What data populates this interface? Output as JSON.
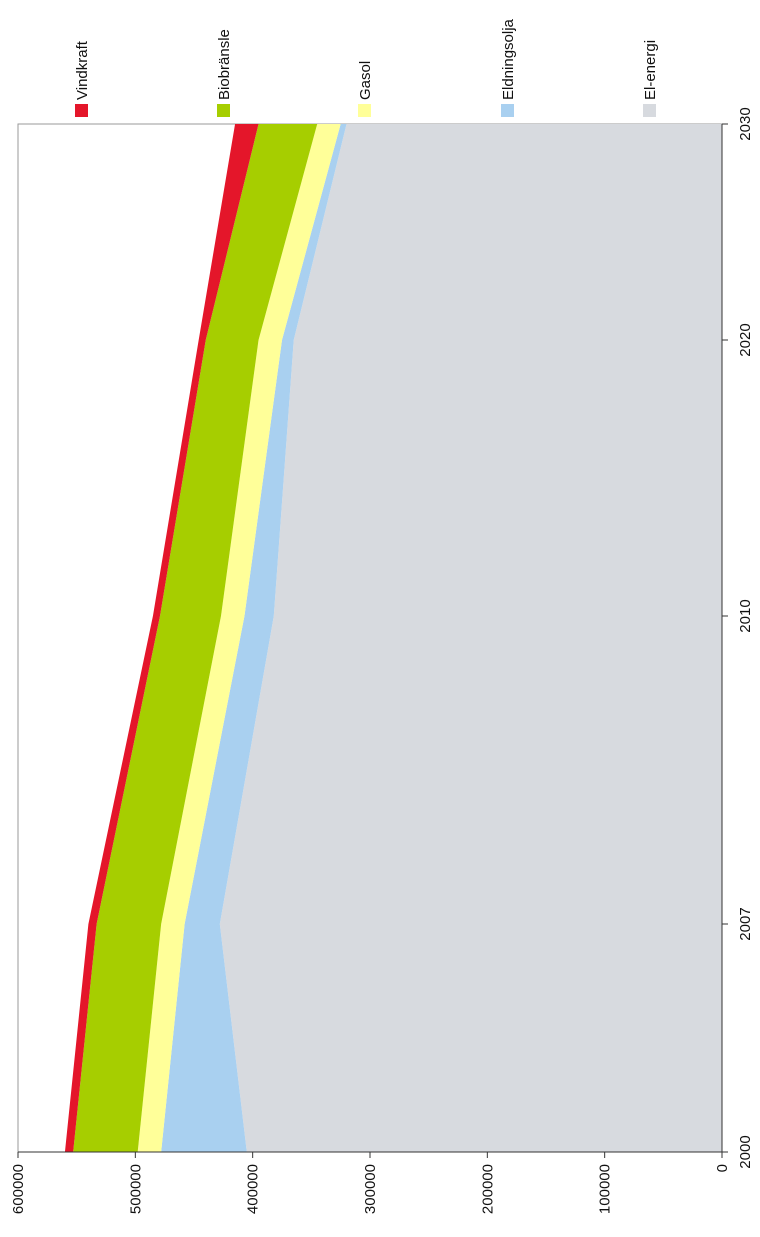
{
  "chart_data": {
    "type": "area",
    "stacked": true,
    "orientation": "rotated-90-ccw",
    "title": "",
    "xlabel": "",
    "ylabel": "",
    "categories": [
      "2000",
      "2007",
      "2010",
      "2020",
      "2030"
    ],
    "ylim": [
      0,
      600000
    ],
    "yticks": [
      "0",
      "100000",
      "200000",
      "300000",
      "400000",
      "500000",
      "600000"
    ],
    "grid": false,
    "legend": "top",
    "series": [
      {
        "name": "El-energi",
        "color": "#d7dadf",
        "values": [
          405000,
          428000,
          382000,
          365000,
          320000
        ]
      },
      {
        "name": "Eldningsolja",
        "color": "#a9d0f0",
        "values": [
          73000,
          30000,
          25000,
          10000,
          5000
        ]
      },
      {
        "name": "Gasol",
        "color": "#ffff99",
        "values": [
          20000,
          20000,
          20000,
          20000,
          20000
        ]
      },
      {
        "name": "Biobränsle",
        "color": "#a6ce00",
        "values": [
          55000,
          55000,
          52000,
          45000,
          50000
        ]
      },
      {
        "name": "Vindkraft",
        "color": "#e4162a",
        "values": [
          7000,
          7000,
          6000,
          6000,
          20000
        ]
      }
    ],
    "legend_order": [
      "Vindkraft",
      "Biobränsle",
      "Gasol",
      "Eldningsolja",
      "El-energi"
    ]
  }
}
